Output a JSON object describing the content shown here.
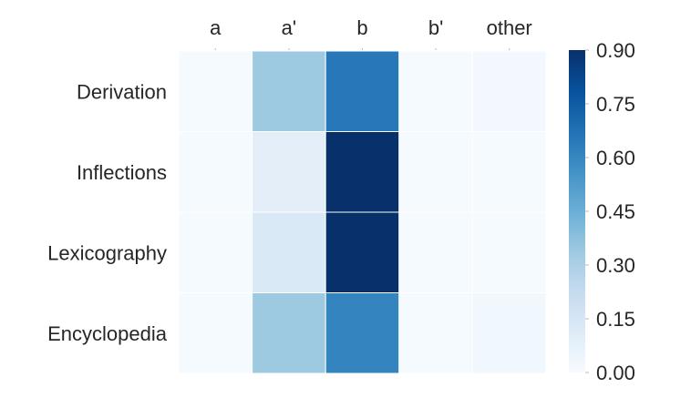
{
  "chart_data": {
    "type": "heatmap",
    "columns": [
      "a",
      "a'",
      "b",
      "b'",
      "other"
    ],
    "rows": [
      "Derivation",
      "Inflections",
      "Lexicography",
      "Encyclopedia"
    ],
    "values": [
      [
        0.01,
        0.34,
        0.65,
        0.01,
        0.02
      ],
      [
        0.01,
        0.09,
        0.93,
        0.01,
        0.01
      ],
      [
        0.01,
        0.13,
        0.9,
        0.01,
        0.01
      ],
      [
        0.01,
        0.34,
        0.61,
        0.01,
        0.03
      ]
    ],
    "colorbar": {
      "min": 0.0,
      "max": 0.9,
      "ticks": [
        0.0,
        0.15,
        0.3,
        0.45,
        0.6,
        0.75,
        0.9
      ],
      "tick_labels": [
        "0.00",
        "0.15",
        "0.30",
        "0.45",
        "0.60",
        "0.75",
        "0.90"
      ]
    },
    "colormap": "Blues",
    "cell_border_color": "#ffffff",
    "title": "",
    "xlabel": "",
    "ylabel": ""
  }
}
